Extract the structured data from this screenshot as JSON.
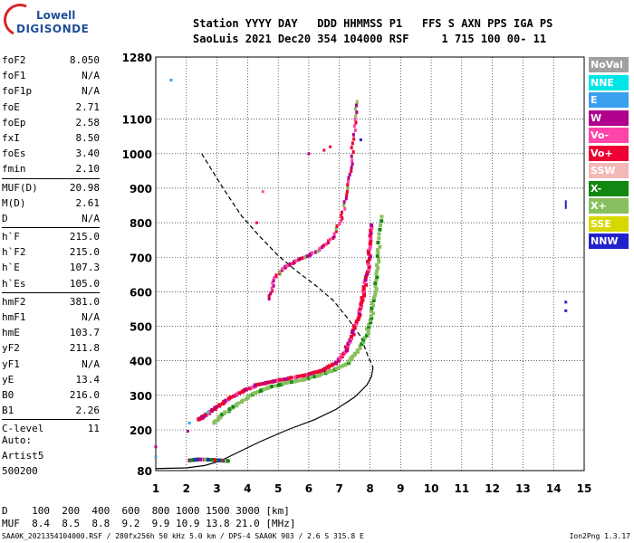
{
  "logo": {
    "line1": "Lowell",
    "line2": "DIGISONDE"
  },
  "header": {
    "line1": "Station YYYY DAY   DDD HHMMSS P1   FFS S AXN PPS IGA PS",
    "line2": "SaoLuis 2021 Dec20 354 104000 RSF     1 715 100 00- 11"
  },
  "params": [
    {
      "name": "foF2",
      "value": "8.050"
    },
    {
      "name": "foF1",
      "value": "N/A"
    },
    {
      "name": "foF1p",
      "value": "N/A"
    },
    {
      "name": "foE",
      "value": "2.71"
    },
    {
      "name": "foEp",
      "value": "2.58"
    },
    {
      "name": "fxI",
      "value": "8.50"
    },
    {
      "name": "foEs",
      "value": "3.40"
    },
    {
      "name": "fmin",
      "value": "2.10"
    },
    {
      "sep": true
    },
    {
      "name": "MUF(D)",
      "value": "20.98"
    },
    {
      "name": "M(D)",
      "value": "2.61"
    },
    {
      "name": "D",
      "value": "N/A"
    },
    {
      "sep": true
    },
    {
      "name": "h`F",
      "value": "215.0"
    },
    {
      "name": "h`F2",
      "value": "215.0"
    },
    {
      "name": "h`E",
      "value": "107.3"
    },
    {
      "name": "h`Es",
      "value": "105.0"
    },
    {
      "sep": true
    },
    {
      "name": "hmF2",
      "value": "381.0"
    },
    {
      "name": "hmF1",
      "value": "N/A"
    },
    {
      "name": "hmE",
      "value": "103.7"
    },
    {
      "name": "yF2",
      "value": "211.8"
    },
    {
      "name": "yF1",
      "value": "N/A"
    },
    {
      "name": "yE",
      "value": "13.4"
    },
    {
      "name": "B0",
      "value": "216.0"
    },
    {
      "name": "B1",
      "value": "2.26"
    },
    {
      "sep": true
    },
    {
      "name": "C-level",
      "value": "11"
    }
  ],
  "auto": {
    "line1": "Auto:",
    "line2": "Artist5",
    "line3": "500200"
  },
  "legend": [
    {
      "label": "NoVal",
      "color": "#a0a0a0"
    },
    {
      "label": "NNE",
      "color": "#00e6e6"
    },
    {
      "label": "E",
      "color": "#3aa0f0"
    },
    {
      "label": "W",
      "color": "#b0008c"
    },
    {
      "label": "Vo-",
      "color": "#ff44aa"
    },
    {
      "label": "Vo+",
      "color": "#ee0033"
    },
    {
      "label": "SSW",
      "color": "#f4b8b8"
    },
    {
      "label": "X-",
      "color": "#118811"
    },
    {
      "label": "X+",
      "color": "#88c060"
    },
    {
      "label": "SSE",
      "color": "#d8d800"
    },
    {
      "label": "NNW",
      "color": "#2222cc"
    }
  ],
  "muf_table": {
    "line1": "D    100  200  400  600  800 1000 1500 3000 [km]",
    "line2": "MUF  8.4  8.5  8.8  9.2  9.9 10.9 13.8 21.0 [MHz]"
  },
  "footer": {
    "left": "SAA0K_2021354104000.RSF / 280fx256h 50 kHz 5.0 km / DPS-4 SAA0K 903 / 2.6 S 315.8 E",
    "right": "Ion2Png 1.3.17"
  },
  "chart_data": {
    "type": "scatter",
    "title": "",
    "xlabel": "",
    "ylabel": "",
    "xlim": [
      1,
      15
    ],
    "ylim": [
      80,
      1280
    ],
    "x_ticks": [
      1,
      2,
      3,
      4,
      5,
      6,
      7,
      8,
      9,
      10,
      11,
      12,
      13,
      14,
      15
    ],
    "y_ticks": [
      80,
      200,
      300,
      400,
      500,
      600,
      700,
      800,
      900,
      1000,
      1100,
      1280
    ],
    "grid": true,
    "profile_curve": [
      [
        1.0,
        86
      ],
      [
        2.0,
        88
      ],
      [
        2.6,
        95
      ],
      [
        3.1,
        108
      ],
      [
        3.6,
        130
      ],
      [
        4.4,
        165
      ],
      [
        5.3,
        200
      ],
      [
        6.2,
        230
      ],
      [
        6.9,
        260
      ],
      [
        7.5,
        295
      ],
      [
        7.9,
        330
      ],
      [
        8.05,
        355
      ],
      [
        8.1,
        381
      ]
    ],
    "muf_curve": [
      [
        2.5,
        1000
      ],
      [
        3.2,
        900
      ],
      [
        3.8,
        820
      ],
      [
        4.4,
        760
      ],
      [
        5.0,
        705
      ],
      [
        5.6,
        660
      ],
      [
        6.2,
        620
      ],
      [
        6.8,
        575
      ],
      [
        7.3,
        520
      ],
      [
        7.7,
        470
      ],
      [
        7.95,
        410
      ],
      [
        8.1,
        381
      ]
    ],
    "o_trace": [
      [
        2.4,
        230
      ],
      [
        2.6,
        240
      ],
      [
        2.9,
        260
      ],
      [
        3.3,
        285
      ],
      [
        3.8,
        310
      ],
      [
        4.3,
        330
      ],
      [
        4.8,
        340
      ],
      [
        5.4,
        350
      ],
      [
        6.0,
        360
      ],
      [
        6.5,
        375
      ],
      [
        6.9,
        395
      ],
      [
        7.2,
        430
      ],
      [
        7.4,
        470
      ],
      [
        7.6,
        520
      ],
      [
        7.75,
        570
      ],
      [
        7.85,
        620
      ],
      [
        7.95,
        680
      ],
      [
        8.0,
        740
      ],
      [
        8.05,
        800
      ]
    ],
    "x_trace": [
      [
        2.9,
        220
      ],
      [
        3.2,
        245
      ],
      [
        3.6,
        270
      ],
      [
        4.1,
        300
      ],
      [
        4.6,
        320
      ],
      [
        5.2,
        335
      ],
      [
        5.8,
        345
      ],
      [
        6.4,
        360
      ],
      [
        6.9,
        375
      ],
      [
        7.3,
        395
      ],
      [
        7.6,
        430
      ],
      [
        7.9,
        480
      ],
      [
        8.05,
        530
      ],
      [
        8.15,
        590
      ],
      [
        8.25,
        660
      ],
      [
        8.3,
        730
      ],
      [
        8.35,
        830
      ]
    ],
    "o_trace_2": [
      [
        4.7,
        580
      ],
      [
        4.9,
        640
      ],
      [
        5.2,
        670
      ],
      [
        5.6,
        690
      ],
      [
        6.0,
        705
      ],
      [
        6.4,
        725
      ],
      [
        6.8,
        760
      ],
      [
        7.1,
        820
      ],
      [
        7.3,
        900
      ],
      [
        7.4,
        980
      ],
      [
        7.5,
        1080
      ],
      [
        7.55,
        1160
      ]
    ],
    "es_trace": [
      [
        2.1,
        110
      ],
      [
        2.4,
        113
      ],
      [
        2.8,
        112
      ],
      [
        3.1,
        110
      ],
      [
        3.4,
        108
      ]
    ],
    "scatter_misc": [
      {
        "x": 1.5,
        "y": 1213,
        "c": "#3aa0f0"
      },
      {
        "x": 2.7,
        "y": 250,
        "c": "#00e6e6"
      },
      {
        "x": 2.1,
        "y": 220,
        "c": "#3aa0f0"
      },
      {
        "x": 2.05,
        "y": 196,
        "c": "#b0008c"
      },
      {
        "x": 4.5,
        "y": 890,
        "c": "#ff44aa"
      },
      {
        "x": 4.3,
        "y": 800,
        "c": "#ee0033"
      },
      {
        "x": 6.5,
        "y": 1010,
        "c": "#ee0033"
      },
      {
        "x": 6.7,
        "y": 1020,
        "c": "#ee0033"
      },
      {
        "x": 6.0,
        "y": 1000,
        "c": "#b0008c"
      },
      {
        "x": 7.7,
        "y": 1040,
        "c": "#2222cc"
      },
      {
        "x": 14.4,
        "y": 570,
        "c": "#2222cc"
      },
      {
        "x": 14.4,
        "y": 545,
        "c": "#2222cc"
      },
      {
        "x": 1.0,
        "y": 150,
        "c": "#b0008c"
      },
      {
        "x": 1.0,
        "y": 120,
        "c": "#3aa0f0"
      }
    ],
    "nnw_bar": {
      "x": 14.4,
      "y1": 840,
      "y2": 865
    }
  }
}
